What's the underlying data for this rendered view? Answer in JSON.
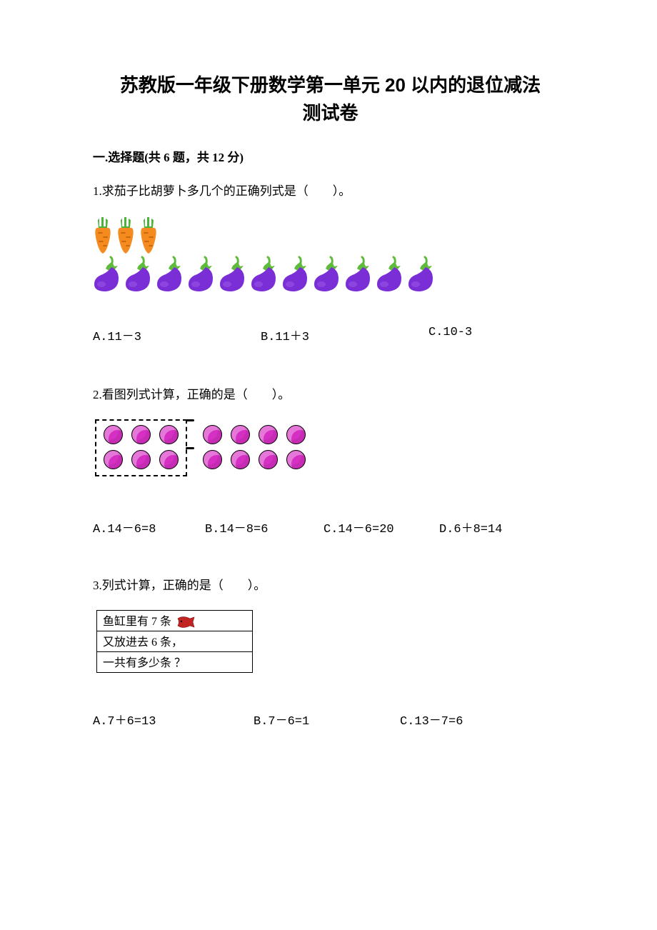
{
  "title_line1": "苏教版一年级下册数学第一单元 20 以内的退位减法",
  "title_line2": "测试卷",
  "section1_heading": "一.选择题(共 6 题，共 12 分)",
  "q1": {
    "text": "1.求茄子比胡萝卜多几个的正确列式是（　　）。",
    "carrot_count": 3,
    "eggplant_count": 11,
    "carrot_body": "#f58a1f",
    "carrot_leaf": "#4eb23a",
    "eggplant_body": "#7a2ed6",
    "eggplant_highlight": "#9d5ae8",
    "eggplant_leaf": "#5fbb3b",
    "optA": "A.11－3",
    "optB": "B.11＋3",
    "optC": "C.10-3",
    "opt_widths": [
      235,
      235,
      180
    ]
  },
  "q2": {
    "text": "2.看图列式计算，正确的是（　　）。",
    "box_rows": 2,
    "box_cols": 3,
    "outside_rows": 2,
    "outside_cols": 4,
    "dot_color": "#d62fc3",
    "optA": "A.14－6=8",
    "optB": "B.14－8=6",
    "optC": "C.14－6=20",
    "optD": "D.6＋8=14",
    "opt_widths": [
      157,
      166,
      162,
      140
    ]
  },
  "q3": {
    "text": "3.列式计算，正确的是（　　）。",
    "row1": "鱼缸里有 7 条",
    "row2": "又放进去 6 条，",
    "row3": "一共有多少条 ？",
    "fish_color": "#c22323",
    "optA": "A.7＋6=13",
    "optB": "B.7－6=1",
    "optC": "C.13－7=6",
    "opt_widths": [
      225,
      205,
      150
    ]
  }
}
